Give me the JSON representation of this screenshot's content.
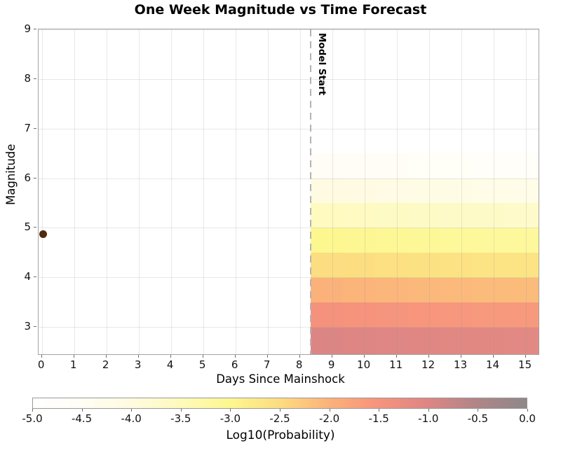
{
  "figure": {
    "background": "#ffffff",
    "plot_border_color": "#a3a3a3",
    "grid_color": "#e9e9e9"
  },
  "chart_data": {
    "type": "heatmap",
    "title": "One Week Magnitude vs Time Forecast",
    "xlabel": "Days Since Mainshock",
    "ylabel": "Magnitude",
    "xlim": [
      -0.1,
      15.4
    ],
    "ylim": [
      2.45,
      9.0
    ],
    "x_ticks": [
      "0",
      "1",
      "2",
      "3",
      "4",
      "5",
      "6",
      "7",
      "8",
      "9",
      "10",
      "11",
      "12",
      "13",
      "14",
      "15"
    ],
    "y_ticks": [
      "3",
      "4",
      "5",
      "6",
      "7",
      "8",
      "9"
    ],
    "grid": true,
    "legend_position": "none",
    "model_start": {
      "label": "Model Start",
      "day": 8.33,
      "line_color": "#b3b3b3",
      "line_style": "dashed"
    },
    "mainshock": {
      "day": 0.05,
      "magnitude": 4.87,
      "color": "#4f2a0d",
      "marker": "circle"
    },
    "heatmap": {
      "description": "Log10 aftershock probability per magnitude bin per forecast day; forecast window spans 7 days starting at model start",
      "day_bin_edges": [
        8.33,
        9.33,
        10.33,
        11.33,
        12.33,
        13.33,
        14.33,
        15.4
      ],
      "magnitude_bin_edges": [
        2.45,
        3.0,
        3.5,
        4.0,
        4.5,
        5.0,
        5.5,
        6.0,
        6.5
      ],
      "log10_probability_rows_bottom_to_top": [
        [
          -0.98,
          -1.0,
          -1.03,
          -1.05,
          -1.07,
          -1.09,
          -1.1
        ],
        [
          -1.48,
          -1.5,
          -1.53,
          -1.55,
          -1.57,
          -1.59,
          -1.6
        ],
        [
          -2.0,
          -2.02,
          -2.05,
          -2.07,
          -2.09,
          -2.11,
          -2.12
        ],
        [
          -2.52,
          -2.54,
          -2.57,
          -2.59,
          -2.61,
          -2.63,
          -2.64
        ],
        [
          -3.02,
          -3.05,
          -3.08,
          -3.1,
          -3.12,
          -3.14,
          -3.15
        ],
        [
          -3.55,
          -3.58,
          -3.61,
          -3.63,
          -3.65,
          -3.67,
          -3.68
        ],
        [
          -4.05,
          -4.08,
          -4.11,
          -4.13,
          -4.15,
          -4.17,
          -4.18
        ],
        [
          -4.55,
          -4.58,
          -4.61,
          -4.63,
          -4.65,
          -4.67,
          -4.68
        ]
      ]
    },
    "colorbar": {
      "label": "Log10(Probability)",
      "range": [
        -5.0,
        0.0
      ],
      "ticks": [
        "-5.0",
        "-4.5",
        "-4.0",
        "-3.5",
        "-3.0",
        "-2.5",
        "-2.0",
        "-1.5",
        "-1.0",
        "-0.5",
        "0.0"
      ],
      "gradient_stops": [
        {
          "t": 0.0,
          "color": "#ffffff"
        },
        {
          "t": 0.1,
          "color": "#fffdf4"
        },
        {
          "t": 0.2,
          "color": "#fffbe0"
        },
        {
          "t": 0.3,
          "color": "#fefabc"
        },
        {
          "t": 0.4,
          "color": "#fdf78e"
        },
        {
          "t": 0.5,
          "color": "#fcdc80"
        },
        {
          "t": 0.6,
          "color": "#fbb27a"
        },
        {
          "t": 0.7,
          "color": "#f6937d"
        },
        {
          "t": 0.8,
          "color": "#dd8684"
        },
        {
          "t": 0.9,
          "color": "#b08587"
        },
        {
          "t": 1.0,
          "color": "#8e8889"
        }
      ]
    }
  }
}
